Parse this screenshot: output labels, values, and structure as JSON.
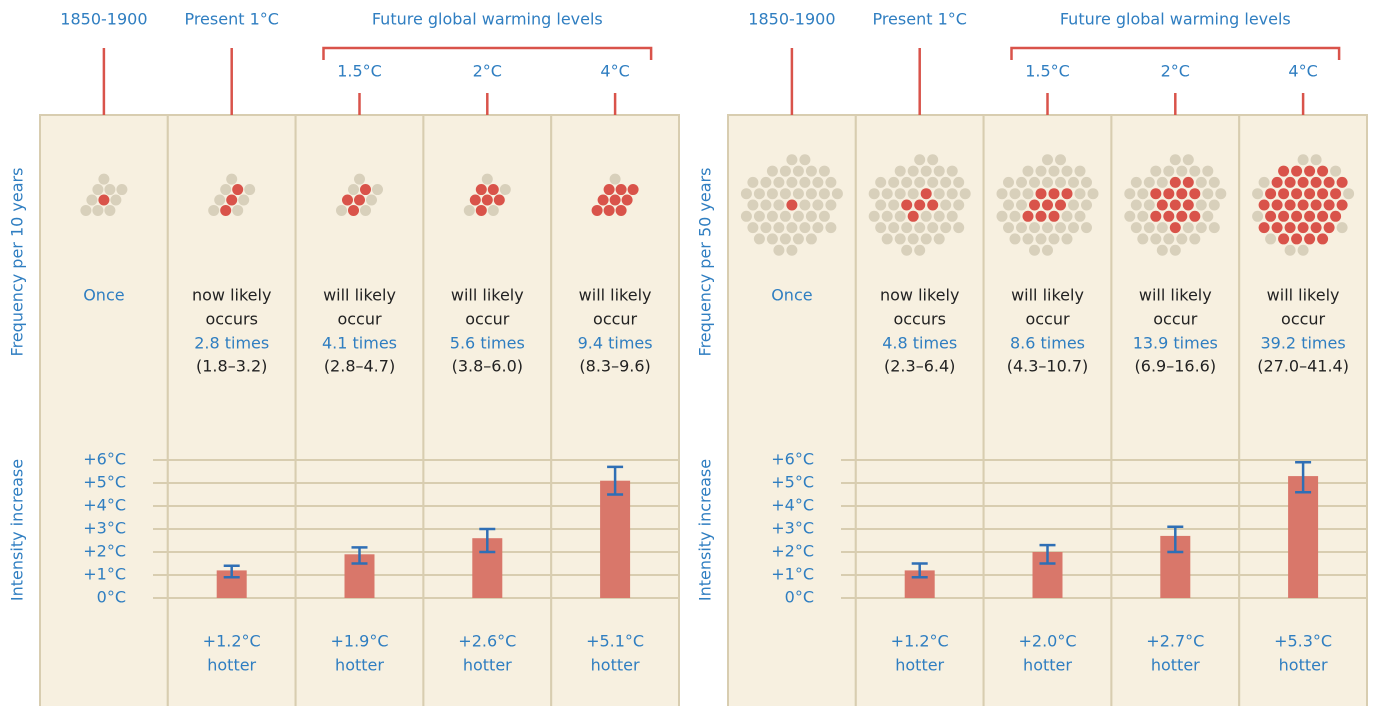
{
  "chart_data": [
    {
      "type": "bar",
      "categories": [
        "1850-1900",
        "Present 1°C",
        "1.5°C",
        "2°C",
        "4°C"
      ],
      "category_group": "Future global warming levels",
      "frequency_label": "Frequency per 10 years",
      "dot_count": 10,
      "red_dots": [
        1,
        3,
        4,
        6,
        9
      ],
      "frequency_text": [
        null,
        [
          "now likely",
          "occurs"
        ],
        [
          "will likely",
          "occur"
        ],
        [
          "will likely",
          "occur"
        ],
        [
          "will likely",
          "occur"
        ]
      ],
      "frequency_labels": [
        "Once",
        "2.8 times",
        "4.1 times",
        "5.6 times",
        "9.4 times"
      ],
      "frequency_ranges": [
        null,
        "(1.8–3.2)",
        "(2.8–4.7)",
        "(3.8–6.0)",
        "(8.3–9.6)"
      ],
      "y_label": "Intensity increase",
      "values": [
        null,
        1.2,
        1.9,
        2.6,
        5.1
      ],
      "error_low": [
        null,
        0.9,
        1.5,
        2.0,
        4.5
      ],
      "error_high": [
        null,
        1.4,
        2.2,
        3.0,
        5.7
      ],
      "value_labels": [
        null,
        "+1.2°C",
        "+1.9°C",
        "+2.6°C",
        "+5.1°C"
      ],
      "value_suffix": "hotter",
      "color": "#d9776a",
      "error_color": "#2f6fb5",
      "ylim": [
        0,
        6
      ],
      "yticks": [
        {
          "value": 0,
          "label": "0°C"
        },
        {
          "value": 1,
          "label": "+1°C"
        },
        {
          "value": 2,
          "label": "+2°C"
        },
        {
          "value": 3,
          "label": "+3°C"
        },
        {
          "value": 4,
          "label": "+4°C"
        },
        {
          "value": 5,
          "label": "+5°C"
        },
        {
          "value": 6,
          "label": "+6°C"
        }
      ],
      "grid": true
    },
    {
      "type": "bar",
      "categories": [
        "1850-1900",
        "Present 1°C",
        "1.5°C",
        "2°C",
        "4°C"
      ],
      "category_group": "Future global warming levels",
      "frequency_label": "Frequency per 50 years",
      "dot_count": 50,
      "red_dots": [
        1,
        5,
        9,
        14,
        39
      ],
      "frequency_text": [
        null,
        [
          "now likely",
          "occurs"
        ],
        [
          "will likely",
          "occur"
        ],
        [
          "will likely",
          "occur"
        ],
        [
          "will likely",
          "occur"
        ]
      ],
      "frequency_labels": [
        "Once",
        "4.8 times",
        "8.6 times",
        "13.9 times",
        "39.2 times"
      ],
      "frequency_ranges": [
        null,
        "(2.3–6.4)",
        "(4.3–10.7)",
        "(6.9–16.6)",
        "(27.0–41.4)"
      ],
      "y_label": "Intensity increase",
      "values": [
        null,
        1.2,
        2.0,
        2.7,
        5.3
      ],
      "error_low": [
        null,
        0.9,
        1.5,
        2.0,
        4.6
      ],
      "error_high": [
        null,
        1.5,
        2.3,
        3.1,
        5.9
      ],
      "value_labels": [
        null,
        "+1.2°C",
        "+2.0°C",
        "+2.7°C",
        "+5.3°C"
      ],
      "value_suffix": "hotter",
      "color": "#d9776a",
      "error_color": "#2f6fb5",
      "ylim": [
        0,
        6
      ],
      "yticks": [
        {
          "value": 0,
          "label": "0°C"
        },
        {
          "value": 1,
          "label": "+1°C"
        },
        {
          "value": 2,
          "label": "+2°C"
        },
        {
          "value": 3,
          "label": "+3°C"
        },
        {
          "value": 4,
          "label": "+4°C"
        },
        {
          "value": 5,
          "label": "+5°C"
        },
        {
          "value": 6,
          "label": "+6°C"
        }
      ],
      "grid": true
    }
  ]
}
